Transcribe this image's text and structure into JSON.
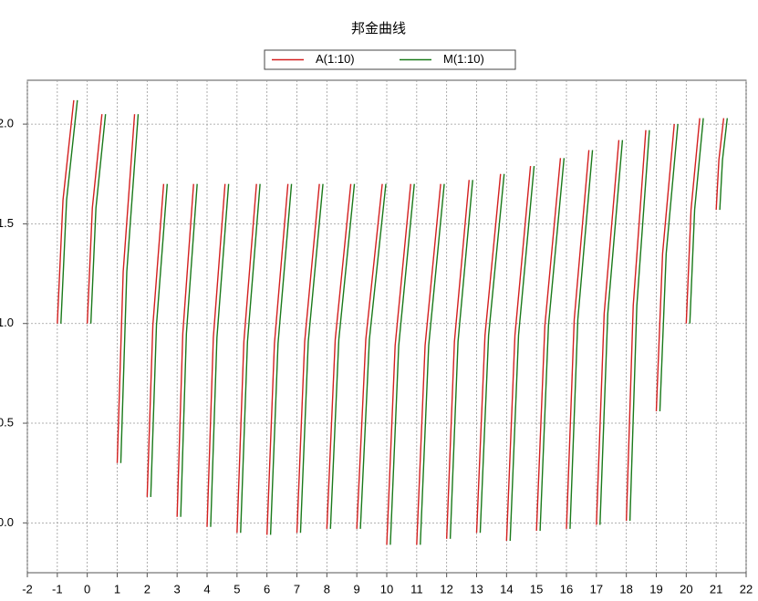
{
  "chart_data": {
    "type": "line",
    "title": "邦金曲线",
    "xlim": [
      -2,
      22
    ],
    "xticks": [
      -2,
      -1,
      0,
      1,
      2,
      3,
      4,
      5,
      6,
      7,
      8,
      9,
      10,
      11,
      12,
      13,
      14,
      15,
      16,
      17,
      18,
      19,
      20,
      21,
      22
    ],
    "ylim": [
      -0.25,
      2.22
    ],
    "yticks": [
      {
        "value": 0,
        "label": "0.0"
      },
      {
        "value": 0.5,
        "label": "0.5"
      },
      {
        "value": 1,
        "label": "1.0"
      },
      {
        "value": 1.5,
        "label": "1.5"
      },
      {
        "value": 2,
        "label": "2.0"
      }
    ],
    "grid": true,
    "legend": "top",
    "series": [
      {
        "name": "A(1:10)",
        "color": "#d42020",
        "x": [
          -1,
          -0.81,
          -0.45,
          null,
          0,
          0.17,
          0.49,
          null,
          1,
          1.2,
          1.58,
          null,
          2,
          2.19,
          2.55,
          null,
          3,
          3.19,
          3.55,
          null,
          4,
          4.21,
          4.6,
          null,
          5,
          5.23,
          5.65,
          null,
          6,
          6.25,
          6.7,
          null,
          7,
          7.26,
          7.75,
          null,
          8,
          8.28,
          8.8,
          null,
          9,
          9.3,
          9.85,
          null,
          10,
          10.28,
          10.8,
          null,
          11,
          11.28,
          11.8,
          null,
          12,
          12.26,
          12.75,
          null,
          13,
          13.28,
          13.8,
          null,
          14,
          14.28,
          14.8,
          null,
          15,
          15.28,
          15.8,
          null,
          16,
          16.26,
          16.75,
          null,
          17,
          17.26,
          17.75,
          null,
          18,
          18.23,
          18.65,
          null,
          19,
          19.21,
          19.6,
          null,
          20,
          20.16,
          20.45,
          null,
          21,
          21.09,
          21.25
        ],
        "values": [
          1.0,
          1.62,
          2.12,
          null,
          1.0,
          1.58,
          2.05,
          null,
          0.3,
          1.26,
          2.05,
          null,
          0.13,
          0.99,
          1.7,
          null,
          0.03,
          0.95,
          1.7,
          null,
          -0.02,
          0.93,
          1.7,
          null,
          -0.05,
          0.91,
          1.7,
          null,
          -0.06,
          0.9,
          1.7,
          null,
          -0.05,
          0.91,
          1.7,
          null,
          -0.03,
          0.92,
          1.7,
          null,
          -0.03,
          0.92,
          1.7,
          null,
          -0.11,
          0.89,
          1.7,
          null,
          -0.11,
          0.89,
          1.7,
          null,
          -0.08,
          0.91,
          1.72,
          null,
          -0.05,
          0.94,
          1.75,
          null,
          -0.09,
          0.94,
          1.79,
          null,
          -0.04,
          0.99,
          1.83,
          null,
          -0.03,
          1.02,
          1.87,
          null,
          -0.01,
          1.05,
          1.92,
          null,
          0.01,
          1.09,
          1.97,
          null,
          0.56,
          1.35,
          2.0,
          null,
          1.0,
          1.57,
          2.03,
          null,
          1.57,
          1.82,
          2.03
        ]
      },
      {
        "name": "M(1:10)",
        "color": "#1a7a1a",
        "x": [
          -0.88,
          -0.69,
          -0.33,
          null,
          0.12,
          0.29,
          0.61,
          null,
          1.12,
          1.32,
          1.7,
          null,
          2.12,
          2.31,
          2.67,
          null,
          3.12,
          3.31,
          3.67,
          null,
          4.12,
          4.33,
          4.72,
          null,
          5.12,
          5.35,
          5.77,
          null,
          6.12,
          6.37,
          6.82,
          null,
          7.12,
          7.38,
          7.87,
          null,
          8.12,
          8.4,
          8.92,
          null,
          9.12,
          9.42,
          9.97,
          null,
          10.12,
          10.4,
          10.92,
          null,
          11.12,
          11.4,
          11.92,
          null,
          12.12,
          12.38,
          12.87,
          null,
          13.12,
          13.4,
          13.92,
          null,
          14.12,
          14.4,
          14.92,
          null,
          15.12,
          15.4,
          15.92,
          null,
          16.12,
          16.38,
          16.87,
          null,
          17.12,
          17.38,
          17.87,
          null,
          18.12,
          18.35,
          18.77,
          null,
          19.12,
          19.33,
          19.72,
          null,
          20.12,
          20.28,
          20.57,
          null,
          21.12,
          21.21,
          21.37
        ],
        "values": [
          1.0,
          1.62,
          2.12,
          null,
          1.0,
          1.58,
          2.05,
          null,
          0.3,
          1.26,
          2.05,
          null,
          0.13,
          0.99,
          1.7,
          null,
          0.03,
          0.95,
          1.7,
          null,
          -0.02,
          0.93,
          1.7,
          null,
          -0.05,
          0.91,
          1.7,
          null,
          -0.06,
          0.9,
          1.7,
          null,
          -0.05,
          0.91,
          1.7,
          null,
          -0.03,
          0.92,
          1.7,
          null,
          -0.03,
          0.92,
          1.7,
          null,
          -0.11,
          0.89,
          1.7,
          null,
          -0.11,
          0.89,
          1.7,
          null,
          -0.08,
          0.91,
          1.72,
          null,
          -0.05,
          0.94,
          1.75,
          null,
          -0.09,
          0.94,
          1.79,
          null,
          -0.04,
          0.99,
          1.83,
          null,
          -0.03,
          1.02,
          1.87,
          null,
          -0.01,
          1.05,
          1.92,
          null,
          0.01,
          1.09,
          1.97,
          null,
          0.56,
          1.35,
          2.0,
          null,
          1.0,
          1.57,
          2.03,
          null,
          1.57,
          1.82,
          2.03
        ]
      }
    ]
  }
}
